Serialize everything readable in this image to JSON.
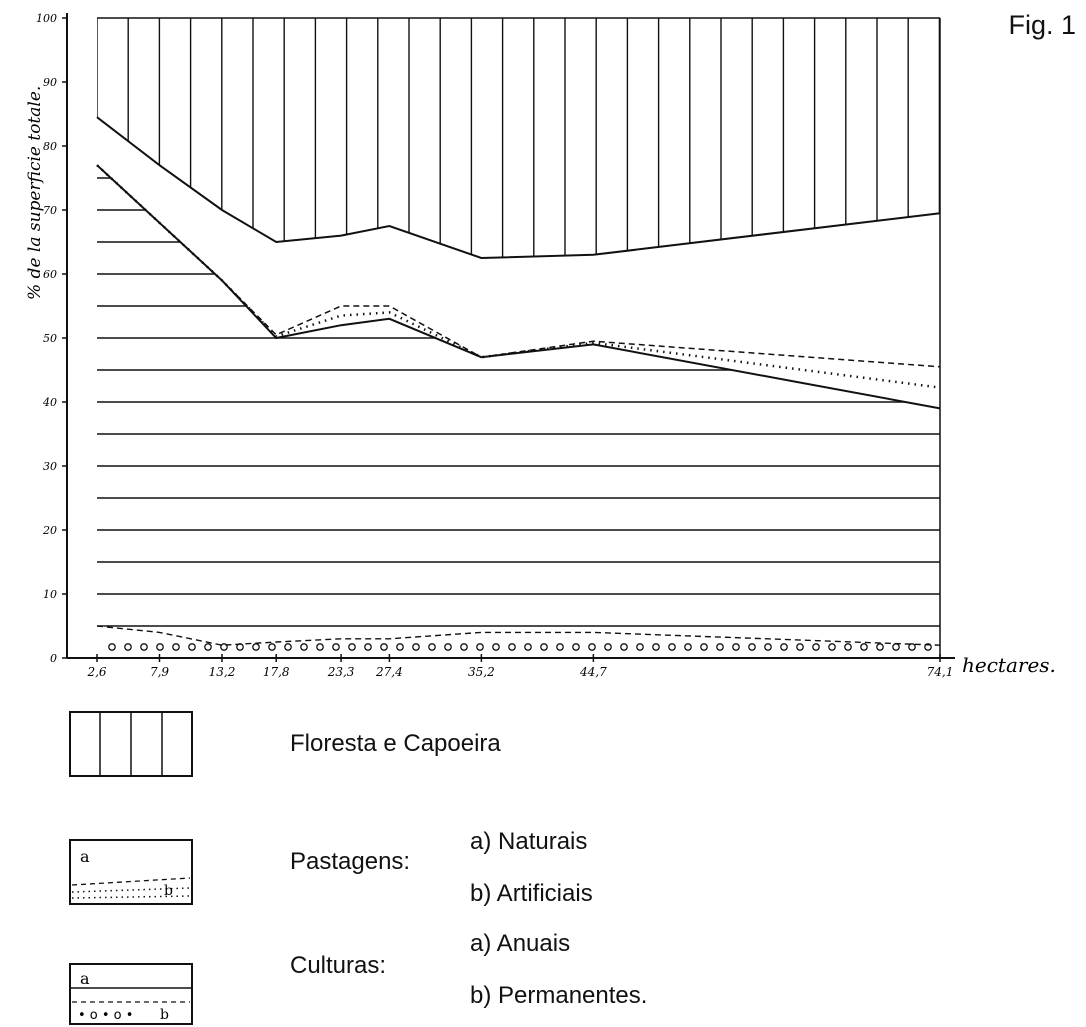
{
  "figure_label": "Fig. 1",
  "legend": {
    "forest": "Floresta e Capoeira",
    "pasture": "Pastagens:",
    "pasture_a": "a) Naturais",
    "pasture_b": "b) Artificiais",
    "crops": "Culturas:",
    "crops_a": "a) Anuais",
    "crops_b": "b) Permanentes.",
    "box_a": "a",
    "box_b": "b"
  },
  "chart_data": {
    "type": "area",
    "ylabel": "% de la superficie totale.",
    "xlabel": "hectares.",
    "ylim": [
      0,
      100
    ],
    "yticks": [
      "0",
      "10",
      "20",
      "30",
      "40",
      "50",
      "60",
      "70",
      "80",
      "90",
      "100"
    ],
    "x_tick_labels": [
      "2,6",
      "7,9",
      "13,2",
      "17,8",
      "23,3",
      "27,4",
      "35,2",
      "44,7",
      "74,1"
    ],
    "x": [
      2.6,
      7.9,
      13.2,
      17.8,
      23.3,
      27.4,
      35.2,
      44.7,
      74.1
    ],
    "series": [
      {
        "name": "Culturas anuais + permanentes (top of crops)",
        "values": [
          5,
          4,
          2,
          2.5,
          3,
          3,
          4,
          4,
          2
        ]
      },
      {
        "name": "Pastagens naturais (top)",
        "values": [
          77,
          68,
          59,
          50,
          52,
          53,
          47,
          49,
          39
        ]
      },
      {
        "name": "Pastagens artificiais (top)",
        "values": [
          77,
          68,
          59,
          50.5,
          55,
          55,
          47,
          49.5,
          45.5
        ]
      },
      {
        "name": "Floresta e Capoeira (lower boundary)",
        "values": [
          84.5,
          77,
          70,
          65,
          66,
          67.5,
          62.5,
          63,
          69.5
        ]
      }
    ]
  }
}
